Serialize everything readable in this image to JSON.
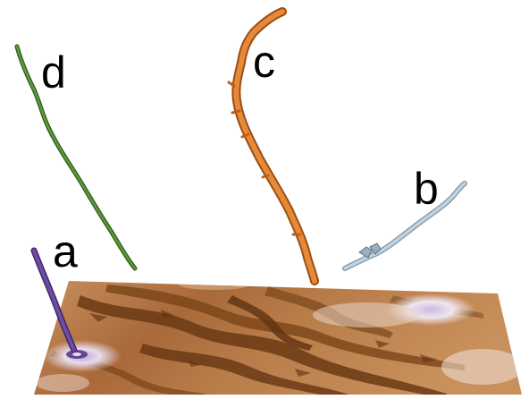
{
  "labels": {
    "a": "a",
    "b": "b",
    "c": "c",
    "d": "d"
  },
  "colors": {
    "tube_a": "#5b3a8c",
    "tube_b": "#a9bccb",
    "tube_c": "#e0853a",
    "tube_d": "#4a7a2e",
    "terrain_dark": "#6a3a14",
    "terrain_light": "#c89060",
    "terrain_pale": "#f0e6e4",
    "terrain_lilac": "#c7b3d6"
  }
}
